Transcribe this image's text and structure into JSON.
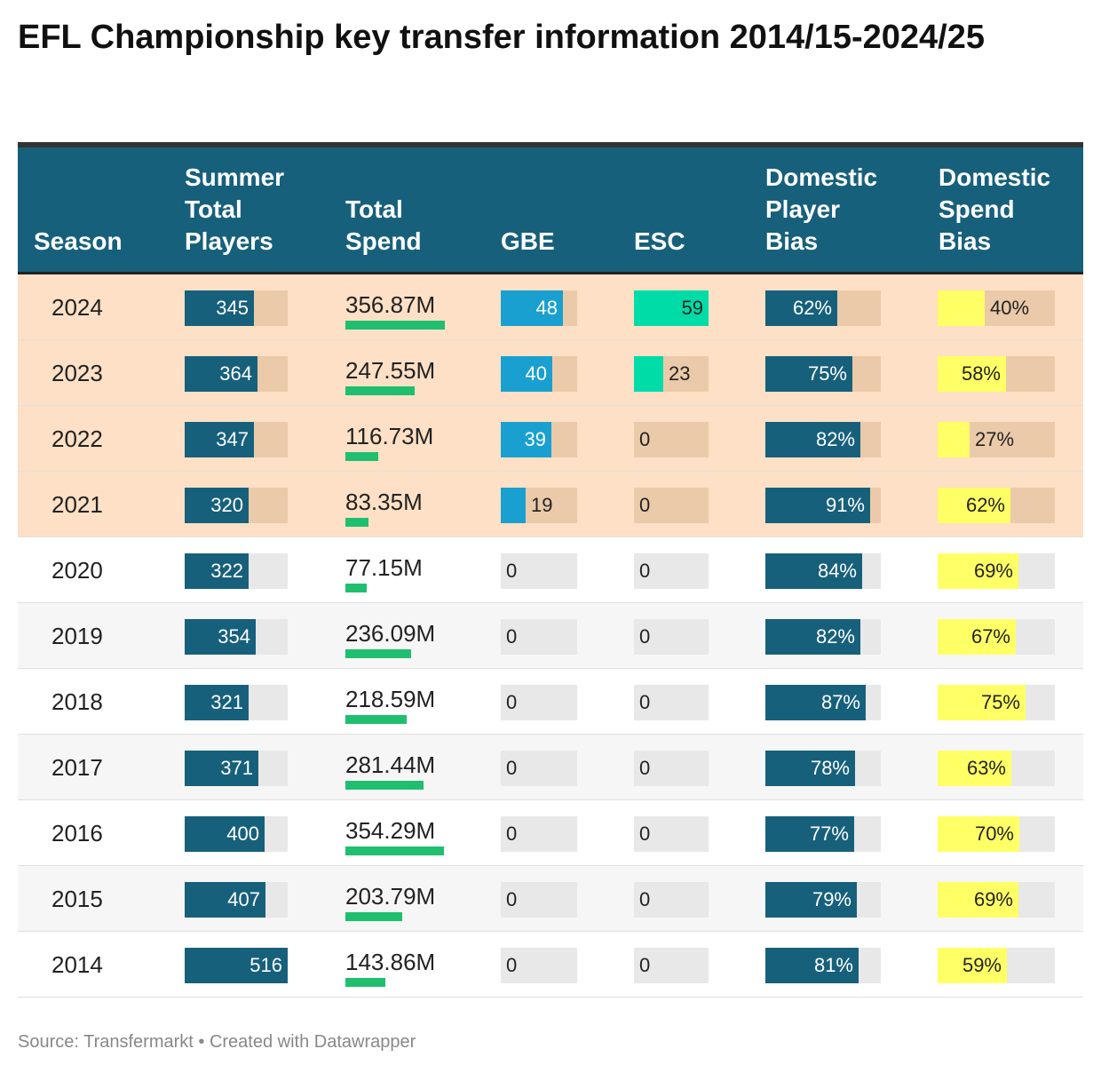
{
  "title": "EFL Championship key transfer information 2014/15-2024/25",
  "footer": "Source: Transfermarkt • Created with Datawrapper",
  "colors": {
    "header_bg": "#17607b",
    "highlight_row": "#fde0c5",
    "highlight_track": "#ebcaa9",
    "track": "#e8e8e8",
    "players_bar": "#17607b",
    "spend_bar": "#1fbf6f",
    "gbe_bar": "#1aa0d0",
    "esc_bar": "#00dca8",
    "bias_bar": "#17607b",
    "spend_bias_bar": "#ffff66"
  },
  "chart_data": {
    "type": "table",
    "columns": [
      "Season",
      "Summer Total Players",
      "Total Spend",
      "GBE",
      "ESC",
      "Domestic Player Bias",
      "Domestic Spend Bias"
    ],
    "highlighted_seasons": [
      "2024",
      "2023",
      "2022",
      "2021"
    ],
    "rows": [
      {
        "season": "2024",
        "players": 345,
        "spend": "356.87M",
        "spend_value": 356.87,
        "gbe": 48,
        "esc": 59,
        "player_bias": "62%",
        "player_bias_value": 62,
        "spend_bias": "40%",
        "spend_bias_value": 40
      },
      {
        "season": "2023",
        "players": 364,
        "spend": "247.55M",
        "spend_value": 247.55,
        "gbe": 40,
        "esc": 23,
        "player_bias": "75%",
        "player_bias_value": 75,
        "spend_bias": "58%",
        "spend_bias_value": 58
      },
      {
        "season": "2022",
        "players": 347,
        "spend": "116.73M",
        "spend_value": 116.73,
        "gbe": 39,
        "esc": 0,
        "player_bias": "82%",
        "player_bias_value": 82,
        "spend_bias": "27%",
        "spend_bias_value": 27
      },
      {
        "season": "2021",
        "players": 320,
        "spend": "83.35M",
        "spend_value": 83.35,
        "gbe": 19,
        "esc": 0,
        "player_bias": "91%",
        "player_bias_value": 91,
        "spend_bias": "62%",
        "spend_bias_value": 62
      },
      {
        "season": "2020",
        "players": 322,
        "spend": "77.15M",
        "spend_value": 77.15,
        "gbe": 0,
        "esc": 0,
        "player_bias": "84%",
        "player_bias_value": 84,
        "spend_bias": "69%",
        "spend_bias_value": 69
      },
      {
        "season": "2019",
        "players": 354,
        "spend": "236.09M",
        "spend_value": 236.09,
        "gbe": 0,
        "esc": 0,
        "player_bias": "82%",
        "player_bias_value": 82,
        "spend_bias": "67%",
        "spend_bias_value": 67
      },
      {
        "season": "2018",
        "players": 321,
        "spend": "218.59M",
        "spend_value": 218.59,
        "gbe": 0,
        "esc": 0,
        "player_bias": "87%",
        "player_bias_value": 87,
        "spend_bias": "75%",
        "spend_bias_value": 75
      },
      {
        "season": "2017",
        "players": 371,
        "spend": "281.44M",
        "spend_value": 281.44,
        "gbe": 0,
        "esc": 0,
        "player_bias": "78%",
        "player_bias_value": 78,
        "spend_bias": "63%",
        "spend_bias_value": 63
      },
      {
        "season": "2016",
        "players": 400,
        "spend": "354.29M",
        "spend_value": 354.29,
        "gbe": 0,
        "esc": 0,
        "player_bias": "77%",
        "player_bias_value": 77,
        "spend_bias": "70%",
        "spend_bias_value": 70
      },
      {
        "season": "2015",
        "players": 407,
        "spend": "203.79M",
        "spend_value": 203.79,
        "gbe": 0,
        "esc": 0,
        "player_bias": "79%",
        "player_bias_value": 79,
        "spend_bias": "69%",
        "spend_bias_value": 69
      },
      {
        "season": "2014",
        "players": 516,
        "spend": "143.86M",
        "spend_value": 143.86,
        "gbe": 0,
        "esc": 0,
        "player_bias": "81%",
        "player_bias_value": 81,
        "spend_bias": "59%",
        "spend_bias_value": 59
      }
    ]
  }
}
